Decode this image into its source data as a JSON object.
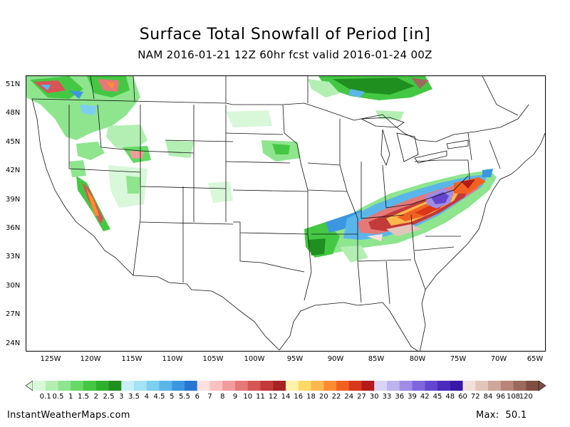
{
  "title": "Surface Total Snowfall of Period [in]",
  "subtitle": "NAM 2016-01-21 12Z 60hr fcst valid 2016-01-24 00Z",
  "latitude_labels": [
    "51N",
    "48N",
    "45N",
    "42N",
    "39N",
    "36N",
    "33N",
    "30N",
    "27N",
    "24N"
  ],
  "longitude_labels": [
    "125W",
    "120W",
    "115W",
    "110W",
    "105W",
    "100W",
    "95W",
    "90W",
    "85W",
    "80W",
    "75W",
    "70W",
    "65W"
  ],
  "colorbar": {
    "labels": [
      "0.1",
      "0.5",
      "1",
      "1.5",
      "2",
      "2.5",
      "3",
      "3.5",
      "4",
      "4.5",
      "5",
      "5.5",
      "6",
      "7",
      "8",
      "9",
      "10",
      "11",
      "12",
      "14",
      "16",
      "18",
      "20",
      "22",
      "24",
      "27",
      "30",
      "33",
      "36",
      "39",
      "42",
      "45",
      "48",
      "60",
      "72",
      "84",
      "96",
      "108",
      "120"
    ],
    "colors": [
      "#d9f7d9",
      "#b3efb3",
      "#8ee58e",
      "#66d966",
      "#44c844",
      "#2eb02e",
      "#1f8f1f",
      "#c8f0f8",
      "#a3e3f5",
      "#7dcff0",
      "#5ab6ea",
      "#3c97e0",
      "#2875d4",
      "#ffe0e0",
      "#ffc1c1",
      "#f29c9c",
      "#e67878",
      "#d65656",
      "#c23a3a",
      "#a82222",
      "#fff2a8",
      "#ffd966",
      "#ffb84d",
      "#ff8c33",
      "#f26122",
      "#d9361a",
      "#b31a1a",
      "#d9d4f5",
      "#bdb3ef",
      "#9e8ce6",
      "#8066dd",
      "#6445cf",
      "#4b2bbd",
      "#3818a6",
      "#f2dfda",
      "#e3c5bc",
      "#cfa69a",
      "#b88679",
      "#9c6a5c",
      "#7e4f42"
    ]
  },
  "footer": {
    "site": "InstantWeatherMaps.com",
    "max_label": "Max:",
    "max_value": "50.1"
  }
}
